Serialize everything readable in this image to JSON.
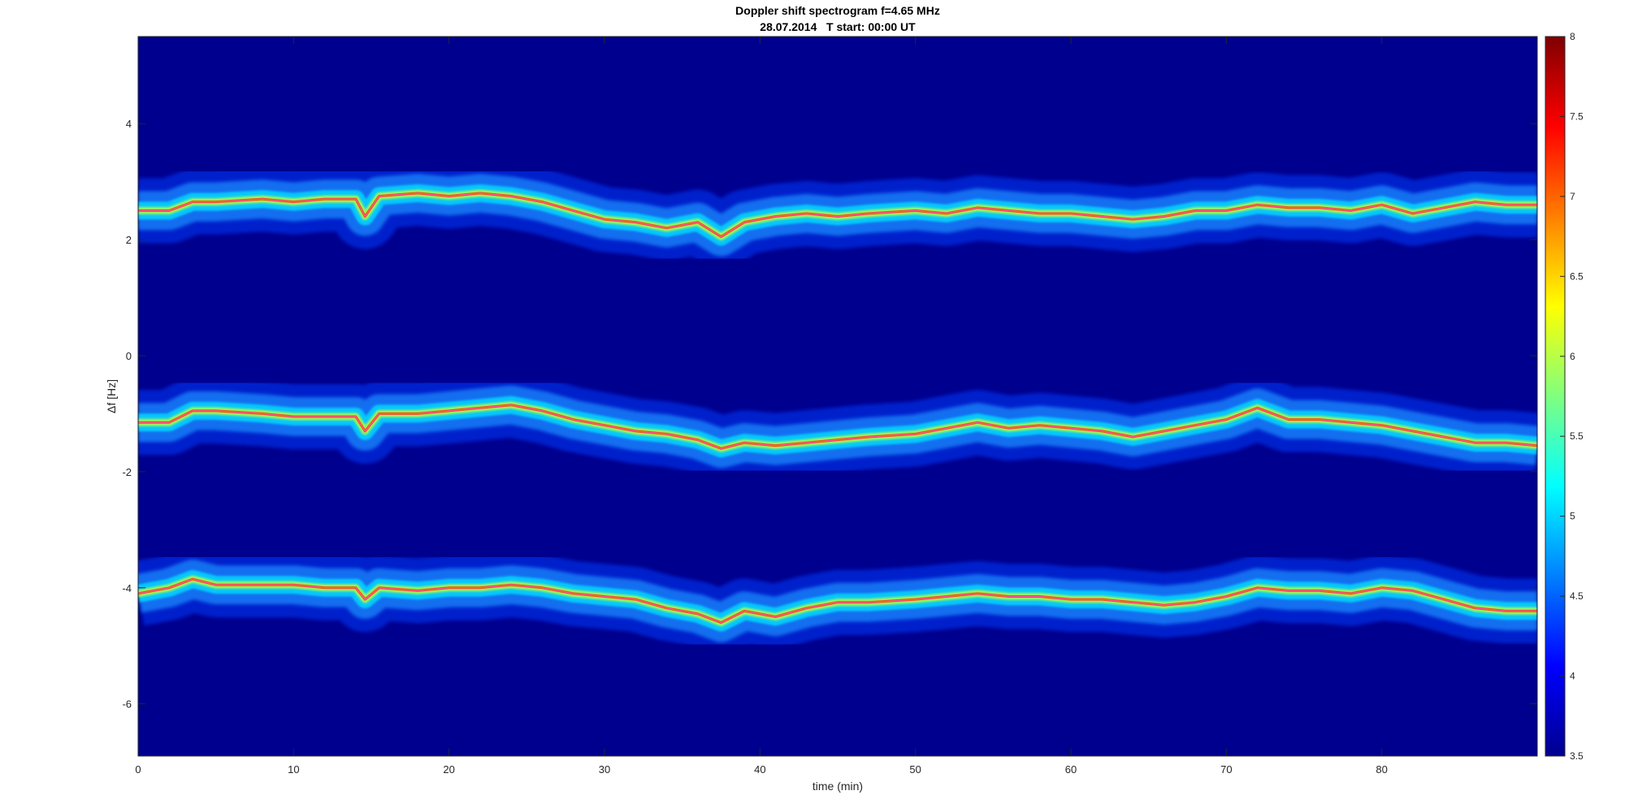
{
  "chart_data": {
    "type": "heatmap",
    "title": "Doppler shift spectrogram f=4.65 MHz",
    "subtitle": "28.07.2014   T start: 00:00 UT",
    "xlabel": "time (min)",
    "ylabel": "Δf [Hz]",
    "xlim": [
      0,
      90
    ],
    "ylim": [
      -6.9,
      5.5
    ],
    "x_ticks": [
      0,
      10,
      20,
      30,
      40,
      50,
      60,
      70,
      80
    ],
    "y_ticks": [
      4,
      2,
      0,
      -2,
      -4,
      -6
    ],
    "colorbar": {
      "colormap": "jet",
      "range": [
        3.5,
        8
      ],
      "ticks": [
        8,
        7.5,
        7,
        6.5,
        6,
        5.5,
        5,
        4.5,
        4,
        3.5
      ]
    },
    "colors": {
      "background": "#00008f",
      "trace": "#ff66cc"
    },
    "series": [
      {
        "x": [
          0,
          2,
          3.5,
          5,
          8,
          10,
          12,
          14,
          14.6,
          15.5,
          18,
          20,
          22,
          24,
          26,
          28,
          30,
          32,
          34,
          36,
          37.5,
          39,
          41,
          43,
          45,
          47,
          50,
          52,
          54,
          56,
          58,
          60,
          62,
          64,
          66,
          68,
          70,
          72,
          74,
          76,
          78,
          80,
          82,
          84,
          86,
          88,
          90
        ],
        "y": [
          2.5,
          2.5,
          2.65,
          2.65,
          2.7,
          2.65,
          2.7,
          2.7,
          2.4,
          2.75,
          2.8,
          2.75,
          2.8,
          2.75,
          2.65,
          2.5,
          2.35,
          2.3,
          2.2,
          2.3,
          2.05,
          2.3,
          2.4,
          2.45,
          2.4,
          2.45,
          2.5,
          2.45,
          2.55,
          2.5,
          2.45,
          2.45,
          2.4,
          2.35,
          2.4,
          2.5,
          2.5,
          2.6,
          2.55,
          2.55,
          2.5,
          2.6,
          2.45,
          2.55,
          2.65,
          2.6,
          2.6
        ]
      },
      {
        "x": [
          0,
          2,
          3.5,
          5,
          8,
          10,
          12,
          14,
          14.6,
          15.5,
          18,
          20,
          22,
          24,
          26,
          28,
          30,
          32,
          34,
          36,
          37.5,
          39,
          41,
          43,
          45,
          47,
          50,
          52,
          54,
          56,
          58,
          60,
          62,
          64,
          66,
          68,
          70,
          72,
          74,
          76,
          78,
          80,
          82,
          84,
          86,
          88,
          90
        ],
        "y": [
          -1.15,
          -1.15,
          -0.95,
          -0.95,
          -1.0,
          -1.05,
          -1.05,
          -1.05,
          -1.3,
          -1.0,
          -1.0,
          -0.95,
          -0.9,
          -0.85,
          -0.95,
          -1.1,
          -1.2,
          -1.3,
          -1.35,
          -1.45,
          -1.6,
          -1.5,
          -1.55,
          -1.5,
          -1.45,
          -1.4,
          -1.35,
          -1.25,
          -1.15,
          -1.25,
          -1.2,
          -1.25,
          -1.3,
          -1.4,
          -1.3,
          -1.2,
          -1.1,
          -0.9,
          -1.1,
          -1.1,
          -1.15,
          -1.2,
          -1.3,
          -1.4,
          -1.5,
          -1.5,
          -1.55
        ]
      },
      {
        "x": [
          0,
          2,
          3.5,
          5,
          8,
          10,
          12,
          14,
          14.6,
          15.5,
          18,
          20,
          22,
          24,
          26,
          28,
          30,
          32,
          34,
          36,
          37.5,
          39,
          41,
          43,
          45,
          47,
          50,
          52,
          54,
          56,
          58,
          60,
          62,
          64,
          66,
          68,
          70,
          72,
          74,
          76,
          78,
          80,
          82,
          84,
          86,
          88,
          90
        ],
        "y": [
          -4.1,
          -4.0,
          -3.85,
          -3.95,
          -3.95,
          -3.95,
          -4.0,
          -4.0,
          -4.2,
          -4.0,
          -4.05,
          -4.0,
          -4.0,
          -3.95,
          -4.0,
          -4.1,
          -4.15,
          -4.2,
          -4.35,
          -4.45,
          -4.6,
          -4.4,
          -4.5,
          -4.35,
          -4.25,
          -4.25,
          -4.2,
          -4.15,
          -4.1,
          -4.15,
          -4.15,
          -4.2,
          -4.2,
          -4.25,
          -4.3,
          -4.25,
          -4.15,
          -4.0,
          -4.05,
          -4.05,
          -4.1,
          -4.0,
          -4.05,
          -4.2,
          -4.35,
          -4.4,
          -4.4
        ]
      }
    ]
  }
}
